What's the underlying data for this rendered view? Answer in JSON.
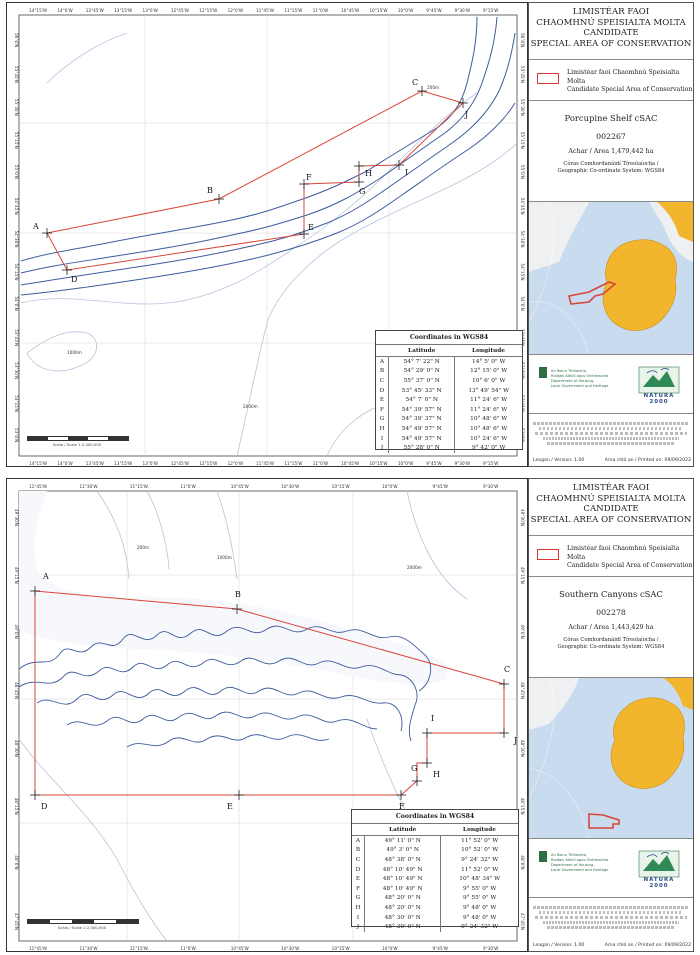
{
  "maps": [
    {
      "title_lines": [
        "LIMISTÉAR FAOI",
        "CHAOMHNÚ SPEISIALTA MOLTA",
        "CANDIDATE",
        "SPECIAL AREA OF CONSERVATION"
      ],
      "legend_lines": [
        "Limistéar faoi Chaomhnú Speisialta Molta",
        "Candidate Special Area of Conservation"
      ],
      "site_name": "Porcupine Shelf cSAC",
      "site_code": "002267",
      "area": "Achar / Area 1,479,442  ha",
      "crs_lines": [
        "Córas Comhordanáidí Tíreolaíocha /",
        "Geographic Co-ordinate System: WGS84"
      ],
      "logo_text": "NATURA 2000",
      "dept_lines": [
        "An Roinn Tithíochta,",
        "Rialtais Áitiúil agus Oidhreachta",
        "Department of Housing,",
        "Local Government and Heritage"
      ],
      "footer_left": "Leagan / Version: 1.00",
      "footer_right": "Arna chló an / Printed on: 09/09/2022",
      "scale_text": "Scála / Scale 1:2,000,000",
      "coords_title": "Coordinates in WGS84",
      "col_lat": "Latitude",
      "col_lon": "Longitude",
      "coords": [
        [
          "A",
          "54° 7' 22\" N",
          "14° 5' 0\" W"
        ],
        [
          "B",
          "54° 29' 0\" N",
          "12° 15' 0\" W"
        ],
        [
          "C",
          "55° 37' 0\" N",
          "10° 6' 0\" W"
        ],
        [
          "D",
          "53° 45' 33\" N",
          "13° 49' 54\" W"
        ],
        [
          "E",
          "54° 7' 0\" N",
          "11° 24' 6\" W"
        ],
        [
          "F",
          "54° 39' 57\" N",
          "11° 24' 6\" W"
        ],
        [
          "G",
          "54° 39' 37\" N",
          "10° 48' 6\" W"
        ],
        [
          "H",
          "54° 49' 57\" N",
          "10° 48' 6\" W"
        ],
        [
          "I",
          "54° 49' 57\" N",
          "10° 24' 6\" W"
        ],
        [
          "J",
          "55° 28' 0\" N",
          "9° 42' 0\" W"
        ]
      ],
      "bottom_ticks": [
        "14°15'W",
        "14°0'W",
        "13°45'W",
        "13°15'W",
        "13°0'W",
        "12°45'W",
        "12°15'W",
        "12°0'W",
        "11°45'W",
        "11°15'W",
        "11°0'W",
        "10°45'W",
        "10°15'W",
        "10°0'W",
        "9°45'W",
        "9°30'W",
        "9°15'W"
      ],
      "top_ticks": [
        "14°15'W",
        "14°0'W",
        "13°45'W",
        "13°15'W",
        "13°0'W",
        "12°45'W",
        "12°15'W",
        "12°0'W",
        "11°45'W",
        "11°15'W",
        "11°0'W",
        "10°45'W",
        "10°15'W",
        "10°0'W",
        "9°45'W",
        "9°30'W",
        "9°15'W"
      ],
      "lat_ticks": [
        "56°0'N",
        "55°45'N",
        "55°30'N",
        "55°15'N",
        "55°0'N",
        "54°45'N",
        "54°30'N",
        "54°15'N",
        "54°0'N",
        "53°45'N",
        "53°30'N",
        "53°15'N",
        "53°0'N"
      ],
      "depth_labels": [
        "200m",
        "1000m",
        "2000m"
      ],
      "points": [
        "A",
        "B",
        "C",
        "D",
        "E",
        "F",
        "G",
        "H",
        "I",
        "J"
      ]
    },
    {
      "title_lines": [
        "LIMISTÉAR FAOI",
        "CHAOMHNÚ SPEISIALTA MOLTA",
        "CANDIDATE",
        "SPECIAL AREA OF CONSERVATION"
      ],
      "legend_lines": [
        "Limistéar faoi Chaomhnú Speisialta Molta",
        "Candidate Special Area of Conservation"
      ],
      "site_name": "Southern Canyons cSAC",
      "site_code": "002278",
      "area": "Achar / Area 1,443,429  ha",
      "crs_lines": [
        "Córas Comhordanáidí Tíreolaíocha /",
        "Geographic Co-ordinate System: WGS84"
      ],
      "logo_text": "NATURA 2000",
      "dept_lines": [
        "An Roinn Tithíochta,",
        "Rialtais Áitiúil agus Oidhreachta",
        "Department of Housing,",
        "Local Government and Heritage"
      ],
      "footer_left": "Leagan / Version: 1.00",
      "footer_right": "Arna chló an / Printed on: 09/09/2022",
      "scale_text": "Scála / Scale 1:2,000,000",
      "coords_title": "Coordinates in WGS84",
      "col_lat": "Latitude",
      "col_lon": "Longitude",
      "coords": [
        [
          "A",
          "49° 11' 0\" N",
          "11° 52' 0\" W"
        ],
        [
          "B",
          "49° 3' 0\" N",
          "10° 52' 0\" W"
        ],
        [
          "C",
          "48° 38' 0\" N",
          "9° 24' 32\" W"
        ],
        [
          "D",
          "48° 10' 49\" N",
          "11° 52' 0\" W"
        ],
        [
          "E",
          "48° 10' 49\" N",
          "10° 48' 34\" W"
        ],
        [
          "F",
          "48° 10' 49\" N",
          "9° 55' 0\" W"
        ],
        [
          "G",
          "48° 20' 0\" N",
          "9° 55' 0\" W"
        ],
        [
          "H",
          "48° 20' 0\" N",
          "9° 48' 0\" W"
        ],
        [
          "I",
          "48° 30' 0\" N",
          "9° 48' 0\" W"
        ],
        [
          "J",
          "48° 30' 0\" N",
          "9° 24' 32\" W"
        ]
      ],
      "bottom_ticks": [
        "11°45'W",
        "11°30'W",
        "11°15'W",
        "11°0'W",
        "10°45'W",
        "10°30'W",
        "10°15'W",
        "10°0'W",
        "9°45'W",
        "9°30'W"
      ],
      "top_ticks": [
        "11°45'W",
        "11°30'W",
        "11°15'W",
        "11°0'W",
        "10°45'W",
        "10°30'W",
        "10°15'W",
        "10°0'W",
        "9°45'W",
        "9°30'W"
      ],
      "lat_ticks": [
        "49°30'N",
        "49°15'N",
        "49°0'N",
        "48°45'N",
        "48°30'N",
        "48°15'N",
        "48°0'N",
        "47°45'N"
      ],
      "depth_labels": [
        "200m",
        "1000m",
        "2000m"
      ],
      "points": [
        "A",
        "B",
        "C",
        "D",
        "E",
        "F",
        "G",
        "H",
        "I",
        "J"
      ]
    }
  ],
  "colors": {
    "boundary": "#d9463a",
    "contour_dark": "#3d5c9e",
    "contour_light": "#a9b8d6",
    "ireland": "#f2b62e",
    "sea_inset": "#c9dbef",
    "land_inset": "#eef0f2"
  }
}
